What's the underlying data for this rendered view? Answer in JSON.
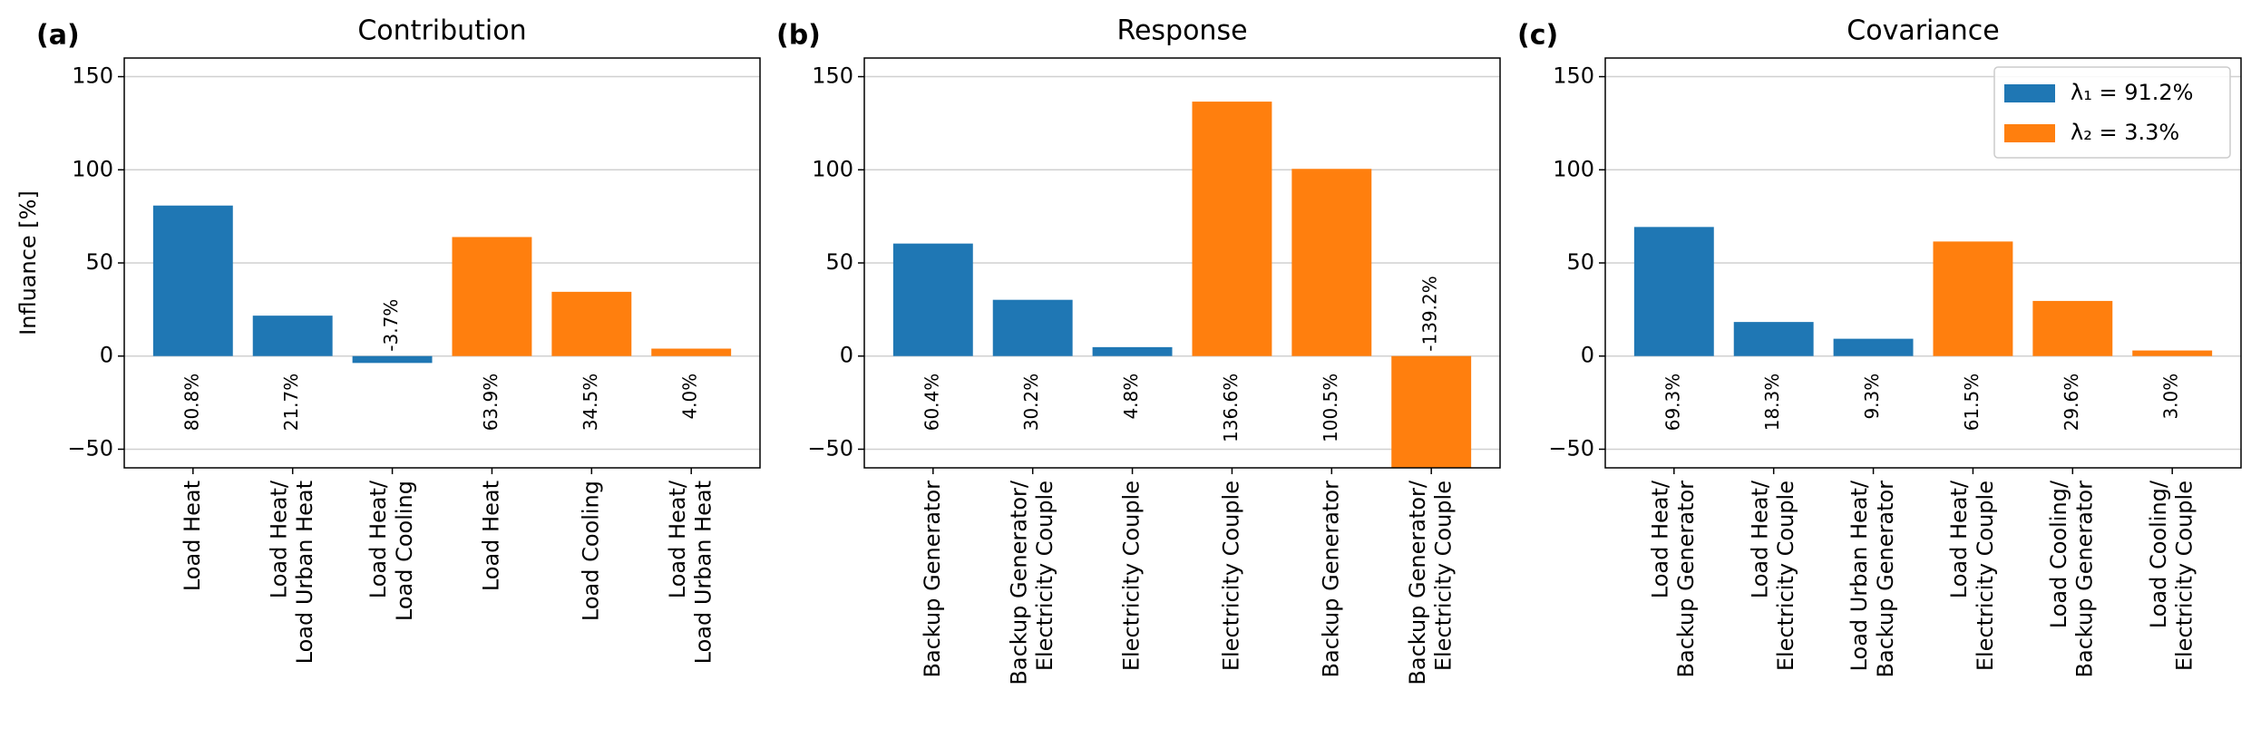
{
  "chart_data": [
    {
      "type": "bar",
      "panel_label": "(a)",
      "title": "Contribution",
      "y_label": "Influance [%]",
      "categories": [
        "Load Heat",
        "Load Heat/\nLoad Urban Heat",
        "Load Heat/\nLoad Cooling",
        "Load Heat",
        "Load Cooling",
        "Load Heat/\nLoad Urban Heat"
      ],
      "series": [
        {
          "color": "#1f77b4",
          "values": [
            80.8,
            21.7,
            -3.7,
            null,
            null,
            null
          ],
          "value_labels": [
            "80.8%",
            "21.7%",
            "-3.7%",
            null,
            null,
            null
          ]
        },
        {
          "color": "#ff7f0e",
          "values": [
            null,
            null,
            null,
            63.9,
            34.5,
            4.0
          ],
          "value_labels": [
            null,
            null,
            null,
            "63.9%",
            "34.5%",
            "4.0%"
          ]
        }
      ],
      "ylim": [
        -60,
        160
      ],
      "yticks": [
        {
          "value": -50,
          "label": "−50"
        },
        0,
        50,
        100,
        150
      ],
      "grid": true
    },
    {
      "type": "bar",
      "panel_label": "(b)",
      "title": "Response",
      "categories": [
        "Backup Generator",
        "Backup Generator/\nElectricity Couple",
        "Electricity Couple",
        "Electricity Couple",
        "Backup Generator",
        "Backup Generator/\nElectricity Couple"
      ],
      "series": [
        {
          "color": "#1f77b4",
          "values": [
            60.4,
            30.2,
            4.8,
            null,
            null,
            null
          ],
          "value_labels": [
            "60.4%",
            "30.2%",
            "4.8%",
            null,
            null,
            null
          ]
        },
        {
          "color": "#ff7f0e",
          "values": [
            null,
            null,
            null,
            136.6,
            100.5,
            -139.2
          ],
          "value_labels": [
            null,
            null,
            null,
            "136.6%",
            "100.5%",
            "-139.2%"
          ]
        }
      ],
      "ylim": [
        -60,
        160
      ],
      "yticks": [
        {
          "value": -50,
          "label": "−50"
        },
        0,
        50,
        100,
        150
      ],
      "grid": true
    },
    {
      "type": "bar",
      "panel_label": "(c)",
      "title": "Covariance",
      "categories": [
        "Load Heat/\nBackup Generator",
        "Load Heat/\nElectricity Couple",
        "Load Urban Heat/\nBackup Generator",
        "Load Heat/\nElectricity Couple",
        "Load Cooling/\nBackup Generator",
        "Load Cooling/\nElectricity Couple"
      ],
      "series": [
        {
          "name": "λ₁ = 91.2%",
          "color": "#1f77b4",
          "values": [
            69.3,
            18.3,
            9.3,
            null,
            null,
            null
          ],
          "value_labels": [
            "69.3%",
            "18.3%",
            "9.3%",
            null,
            null,
            null
          ]
        },
        {
          "name": "λ₂ = 3.3%",
          "color": "#ff7f0e",
          "values": [
            null,
            null,
            null,
            61.5,
            29.6,
            3.0
          ],
          "value_labels": [
            null,
            null,
            null,
            "61.5%",
            "29.6%",
            "3.0%"
          ]
        }
      ],
      "ylim": [
        -60,
        160
      ],
      "yticks": [
        {
          "value": -50,
          "label": "−50"
        },
        0,
        50,
        100,
        150
      ],
      "grid": true,
      "legend": "upper right"
    }
  ]
}
